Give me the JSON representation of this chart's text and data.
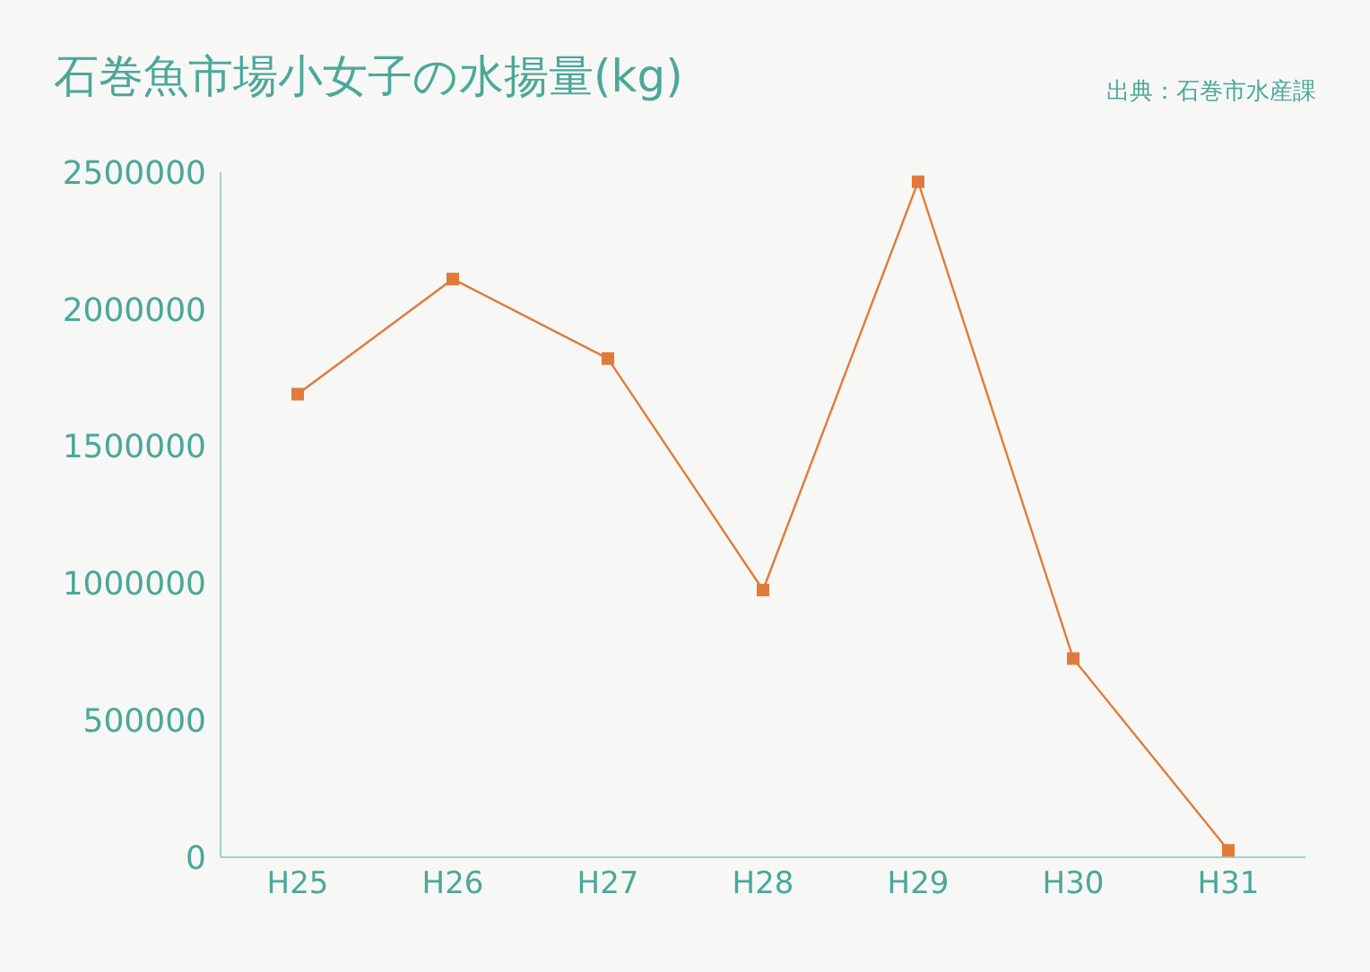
{
  "chart_data": {
    "type": "line",
    "title": "石巻魚市場小女子の水揚量(kg)",
    "annotations": [
      "出典：石巻市水産課"
    ],
    "categories": [
      "H25",
      "H26",
      "H27",
      "H28",
      "H29",
      "H30",
      "H31"
    ],
    "series": [
      {
        "color": "#e07b39",
        "values": [
          1690000,
          2110000,
          1820000,
          975000,
          2465000,
          725000,
          25000
        ]
      }
    ],
    "ylim": [
      0,
      2500000
    ],
    "yticks": [
      0,
      500000,
      1000000,
      1500000,
      2000000,
      2500000
    ],
    "grid": false,
    "legend": false,
    "marker": "square",
    "line_style": "solid"
  }
}
